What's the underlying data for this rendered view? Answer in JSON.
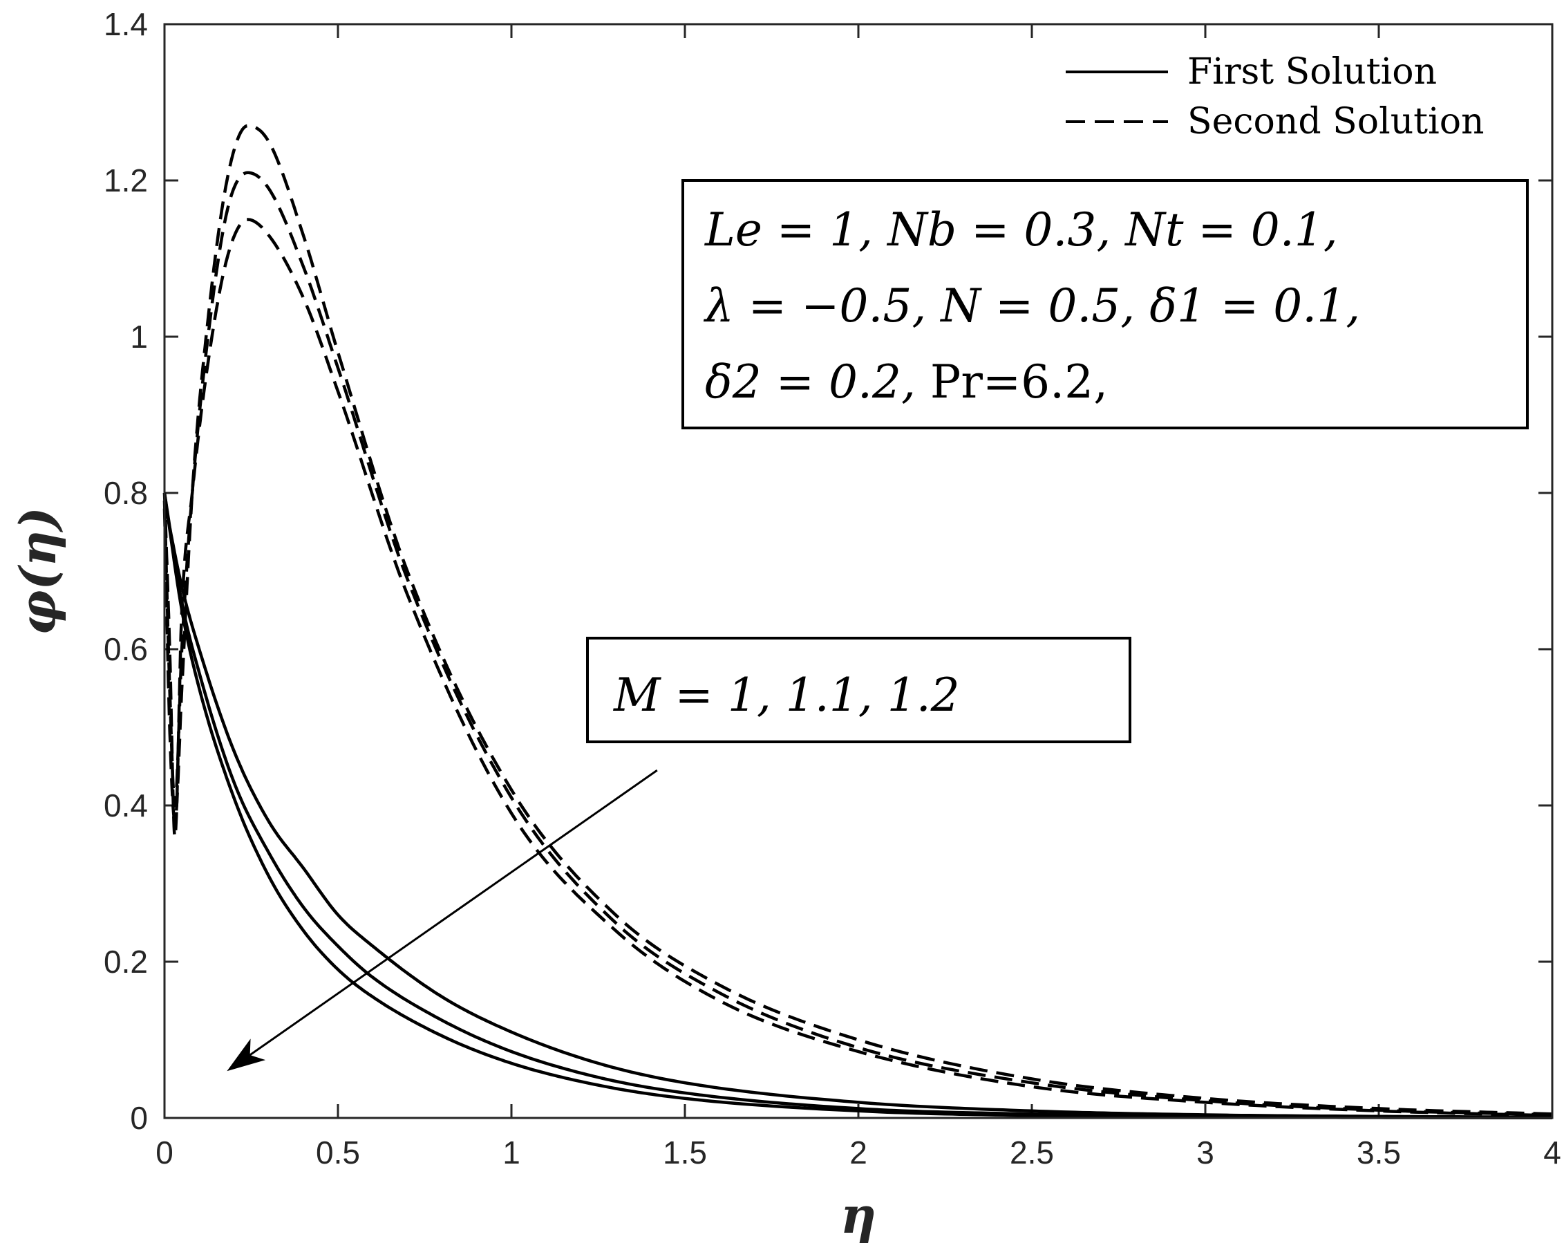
{
  "chart_data": {
    "type": "line",
    "title": "",
    "xlabel": "η",
    "ylabel": "φ(η)",
    "xlim": [
      0,
      4
    ],
    "ylim": [
      0,
      1.4
    ],
    "xticks": [
      "0",
      "0.5",
      "1",
      "1.5",
      "2",
      "2.5",
      "3",
      "3.5",
      "4"
    ],
    "yticks": [
      "0",
      "0.2",
      "0.4",
      "0.6",
      "0.8",
      "1",
      "1.2",
      "1.4"
    ],
    "grid": false,
    "legend": {
      "position": "top-right",
      "entries": [
        {
          "label": "First Solution",
          "style": "solid"
        },
        {
          "label": "Second Solution",
          "style": "dashed"
        }
      ]
    },
    "series": [
      {
        "solution": "first",
        "M": 1,
        "style": "solid",
        "x": [
          0,
          0.05,
          0.1,
          0.2,
          0.3,
          0.4,
          0.5,
          0.6,
          0.8,
          1.0,
          1.25,
          1.5,
          2.0,
          2.5,
          3.0,
          3.5,
          4.0
        ],
        "y": [
          0.79,
          0.68,
          0.6,
          0.47,
          0.38,
          0.32,
          0.26,
          0.22,
          0.155,
          0.11,
          0.07,
          0.045,
          0.02,
          0.009,
          0.004,
          0.002,
          0.001
        ]
      },
      {
        "solution": "first",
        "M": 1.1,
        "style": "solid",
        "x": [
          0,
          0.05,
          0.1,
          0.2,
          0.3,
          0.4,
          0.5,
          0.6,
          0.8,
          1.0,
          1.25,
          1.5,
          2.0,
          2.5,
          3.0,
          3.5,
          4.0
        ],
        "y": [
          0.8,
          0.66,
          0.57,
          0.43,
          0.34,
          0.27,
          0.22,
          0.18,
          0.125,
          0.085,
          0.052,
          0.032,
          0.012,
          0.005,
          0.002,
          0.001,
          0.0005
        ]
      },
      {
        "solution": "first",
        "M": 1.2,
        "style": "solid",
        "x": [
          0,
          0.05,
          0.1,
          0.2,
          0.3,
          0.4,
          0.5,
          0.6,
          0.8,
          1.0,
          1.25,
          1.5,
          2.0,
          2.5,
          3.0,
          3.5,
          4.0
        ],
        "y": [
          0.8,
          0.65,
          0.55,
          0.41,
          0.31,
          0.24,
          0.19,
          0.155,
          0.105,
          0.07,
          0.042,
          0.025,
          0.009,
          0.003,
          0.001,
          0.0005,
          0.0002
        ]
      },
      {
        "solution": "second",
        "M": 1,
        "style": "dashed",
        "x": [
          0,
          0.015,
          0.03,
          0.05,
          0.08,
          0.12,
          0.18,
          0.24,
          0.3,
          0.4,
          0.5,
          0.7,
          1.0,
          1.3,
          1.6,
          2.0,
          2.5,
          3.0,
          3.5,
          4.0
        ],
        "y": [
          0.78,
          0.5,
          0.38,
          0.55,
          0.8,
          1.0,
          1.2,
          1.27,
          1.25,
          1.13,
          0.98,
          0.7,
          0.42,
          0.26,
          0.17,
          0.1,
          0.05,
          0.025,
          0.012,
          0.005
        ]
      },
      {
        "solution": "second",
        "M": 1.1,
        "style": "dashed",
        "x": [
          0,
          0.015,
          0.03,
          0.05,
          0.08,
          0.12,
          0.18,
          0.24,
          0.3,
          0.4,
          0.5,
          0.7,
          1.0,
          1.3,
          1.6,
          2.0,
          2.5,
          3.0,
          3.5,
          4.0
        ],
        "y": [
          0.79,
          0.55,
          0.4,
          0.6,
          0.8,
          0.98,
          1.16,
          1.21,
          1.19,
          1.09,
          0.96,
          0.69,
          0.41,
          0.25,
          0.16,
          0.09,
          0.045,
          0.022,
          0.01,
          0.004
        ]
      },
      {
        "solution": "second",
        "M": 1.2,
        "style": "dashed",
        "x": [
          0,
          0.015,
          0.03,
          0.05,
          0.08,
          0.12,
          0.18,
          0.24,
          0.3,
          0.4,
          0.5,
          0.7,
          1.0,
          1.3,
          1.6,
          2.0,
          2.5,
          3.0,
          3.5,
          4.0
        ],
        "y": [
          0.8,
          0.6,
          0.36,
          0.65,
          0.8,
          0.95,
          1.1,
          1.15,
          1.13,
          1.05,
          0.93,
          0.67,
          0.39,
          0.24,
          0.15,
          0.085,
          0.04,
          0.02,
          0.009,
          0.003
        ]
      }
    ],
    "annotations": {
      "params": {
        "line1": "Le = 1, Nb = 0.3, Nt = 0.1,",
        "line2": "λ = −0.5, N = 0.5, δ1 = 0.1,",
        "line3a": "δ2 = 0.2, ",
        "line3b": "Pr=6.2,"
      },
      "m_label": "M = 1, 1.1, 1.2",
      "arrow": {
        "from": [
          1.42,
          0.445
        ],
        "to": [
          0.18,
          0.06
        ]
      }
    }
  }
}
